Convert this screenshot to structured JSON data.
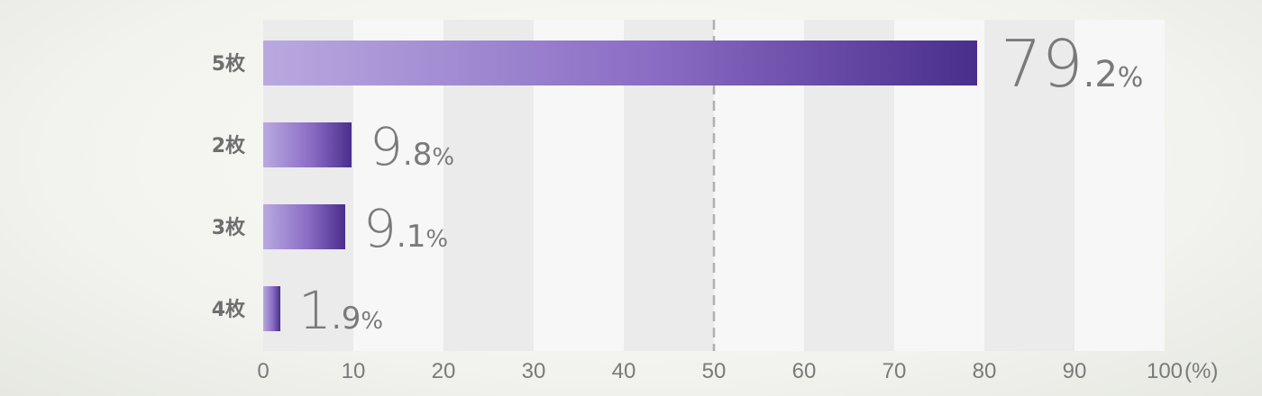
{
  "chart_data": {
    "type": "bar",
    "orientation": "horizontal",
    "categories": [
      "5枚",
      "2枚",
      "3枚",
      "4枚"
    ],
    "values": [
      79.2,
      9.8,
      9.1,
      1.9
    ],
    "value_labels": [
      {
        "int": "79",
        "dec": ".2",
        "unit": "%"
      },
      {
        "int": "9",
        "dec": ".8",
        "unit": "%"
      },
      {
        "int": "9",
        "dec": ".1",
        "unit": "%"
      },
      {
        "int": "1",
        "dec": ".9",
        "unit": "%"
      }
    ],
    "xlim": [
      0,
      100
    ],
    "xticks": [
      "0",
      "10",
      "20",
      "30",
      "40",
      "50",
      "60",
      "70",
      "80",
      "90",
      "100"
    ],
    "x_unit": "(%)",
    "reference_line": 50,
    "grid": "alternating column bands",
    "legend": "none"
  },
  "colors": {
    "bar_start": "#b9a9e0",
    "bar_mid": "#8a6cc4",
    "bar_end": "#4a2e8c",
    "band": "#ebebeb",
    "band_alt": "#f7f7f7",
    "text": "#7a7a7a",
    "category_text": "#6e6e6e",
    "reference_line": "#b0b0b0"
  }
}
